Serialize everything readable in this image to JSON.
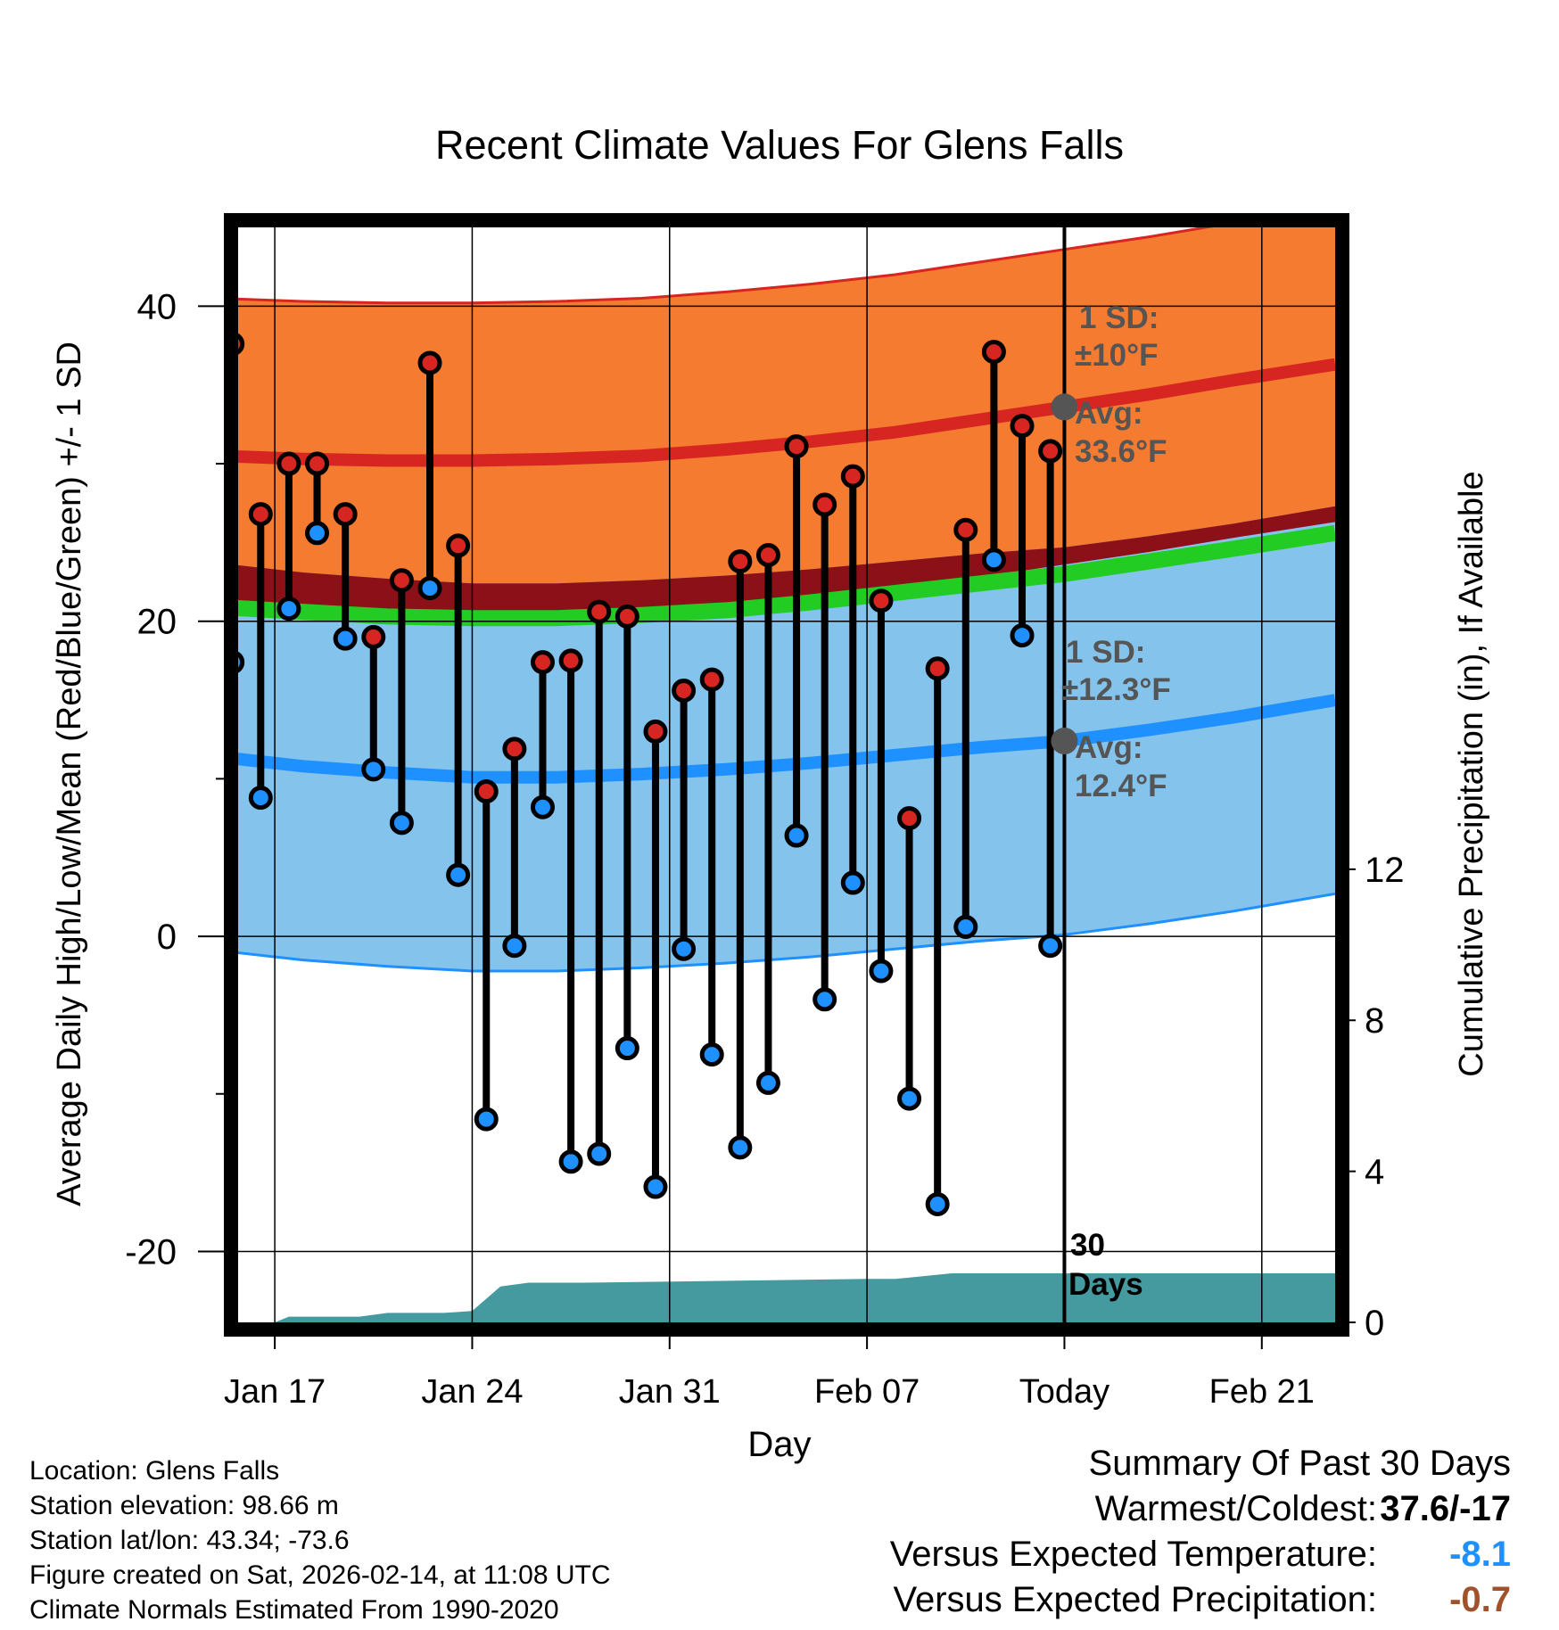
{
  "colors": {
    "high_band": "#f47b2f",
    "low_band": "#84c3ec",
    "overlap_band": "#8b1018",
    "mean_band": "#22cc22",
    "high_avg_line": "#d72622",
    "low_avg_line": "#1e90ff",
    "precip_fill": "#459aa0",
    "high_marker": "#d72622",
    "low_marker": "#1e90ff",
    "avg_dot": "#555555",
    "annotation_text": "#555555",
    "cold_value": "#1e90ff",
    "dry_value": "#a0522d"
  },
  "chart_data": {
    "type": "line",
    "title": "Recent Climate Values For Glens Falls",
    "xlabel": "Day",
    "ylabel_left": "Average Daily High/Low/Mean (Red/Blue/Green) +/- 1 SD",
    "ylabel_right": "Cumulative Precipitation (in), If Available",
    "ylim_left": [
      -24.5,
      45
    ],
    "ylim_right": [
      0,
      29
    ],
    "yticks_left": [
      "40",
      "20",
      "0",
      "-20"
    ],
    "yticks_left_values": [
      40,
      20,
      0,
      -20
    ],
    "yticks_right": [
      "12",
      "8",
      "4",
      "0"
    ],
    "yticks_right_values": [
      12,
      8,
      4,
      0
    ],
    "xlim_days": [
      -29.3,
      9.6
    ],
    "xtick_labels": [
      "Jan 17",
      "Jan 24",
      "Jan 31",
      "Feb 07",
      "Today",
      "Feb 21"
    ],
    "xtick_days": [
      -28,
      -21,
      -14,
      -7,
      0,
      7
    ],
    "daily": {
      "days": [
        -30,
        -29,
        -28,
        -27,
        -26,
        -25,
        -24,
        -23,
        -22,
        -21,
        -20,
        -19,
        -18,
        -17,
        -16,
        -15,
        -14,
        -13,
        -12,
        -11,
        -10,
        -9,
        -8,
        -7,
        -6,
        -5,
        -4,
        -3,
        -2,
        -1
      ],
      "highs": [
        37.6,
        26.8,
        30,
        30,
        26.8,
        19,
        22.6,
        36.4,
        24.8,
        9.2,
        11.9,
        17.4,
        17.5,
        20.6,
        20.3,
        13,
        15.6,
        16.3,
        23.8,
        24.2,
        31.1,
        27.4,
        29.2,
        21.3,
        7.5,
        17,
        25.8,
        37.1,
        32.4,
        30.8
      ],
      "lows": [
        17.4,
        8.8,
        20.8,
        25.6,
        18.9,
        10.6,
        7.2,
        22.1,
        3.9,
        -11.6,
        -0.6,
        8.2,
        -14.3,
        -13.8,
        -7.1,
        -15.9,
        -0.8,
        -7.5,
        -13.4,
        -9.3,
        6.4,
        -4,
        3.4,
        -2.2,
        -10.3,
        -17,
        0.6,
        23.9,
        19.1,
        -0.6
      ]
    },
    "normals": {
      "days": [
        -30,
        -27,
        -24,
        -21,
        -18,
        -15,
        -12,
        -9,
        -6,
        -3,
        0,
        3,
        6,
        9.6
      ],
      "avg_high": [
        30.5,
        30.3,
        30.2,
        30.2,
        30.3,
        30.5,
        30.9,
        31.4,
        32,
        32.8,
        33.6,
        34.4,
        35.3,
        36.3
      ],
      "avg_low": [
        11.4,
        10.8,
        10.4,
        10.1,
        10.1,
        10.3,
        10.6,
        11,
        11.5,
        12,
        12.4,
        13.1,
        13.9,
        15
      ],
      "avg_mean": [
        20.9,
        20.6,
        20.3,
        20.2,
        20.2,
        20.4,
        20.7,
        21.2,
        21.8,
        22.4,
        23,
        23.8,
        24.6,
        25.6
      ]
    },
    "sd_high": 10.0,
    "sd_low": 12.3,
    "precip": {
      "days": [
        -30,
        -28,
        -27.5,
        -25,
        -24,
        -22,
        -21,
        -20,
        -19,
        -17,
        -7,
        -6,
        -4,
        -3,
        9.6
      ],
      "cum": [
        0,
        0,
        0.15,
        0.15,
        0.25,
        0.25,
        0.3,
        0.95,
        1.05,
        1.05,
        1.15,
        1.15,
        1.3,
        1.3,
        1.3
      ]
    },
    "annotations": {
      "high_sd_label": "1 SD:",
      "high_sd_value": "±10°F",
      "high_avg_label": "Avg:",
      "high_avg_value": "33.6°F",
      "low_sd_label": "1 SD:",
      "low_sd_value": "±12.3°F",
      "low_avg_label": "Avg:",
      "low_avg_value": "12.4°F",
      "days_number": "30",
      "days_word": "Days"
    }
  },
  "footer": {
    "location": "Location: Glens Falls",
    "elevation": "Station elevation: 98.66 m",
    "latlon": "Station lat/lon: 43.34; -73.6",
    "created": "Figure created on Sat, 2026-02-14, at 11:08 UTC",
    "normals": "Climate Normals Estimated From 1990-2020"
  },
  "summary": {
    "heading": "Summary Of Past 30 Days",
    "warm_cold_label": "Warmest/Coldest:",
    "warm_cold_value": "37.6/-17",
    "temp_label": "Versus Expected Temperature:",
    "temp_value": "-8.1",
    "precip_label": "Versus Expected Precipitation:",
    "precip_value": "-0.7"
  }
}
